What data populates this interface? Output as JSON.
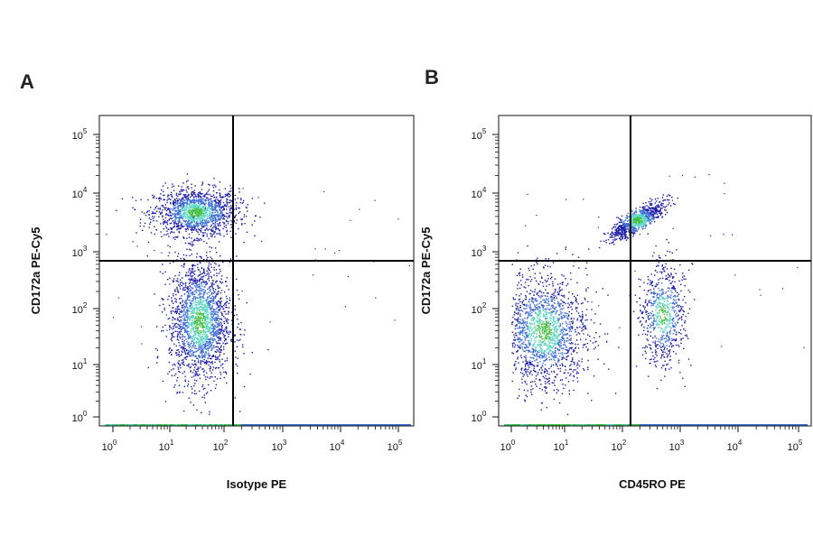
{
  "chart_data": [
    {
      "type": "scatter",
      "panel": "A",
      "xlabel": "Isotype PE",
      "ylabel": "CD172a PE-Cy5",
      "scale": "log",
      "xlim": [
        1,
        100000
      ],
      "ylim": [
        1,
        100000
      ],
      "x_ticks": [
        "10",
        "10",
        "10",
        "10",
        "10",
        "10"
      ],
      "x_tick_exps": [
        "0",
        "1",
        "2",
        "3",
        "4",
        "5"
      ],
      "y_ticks": [
        "10",
        "10",
        "10",
        "10",
        "10",
        "10"
      ],
      "y_tick_exps": [
        "0",
        "1",
        "2",
        "3",
        "4",
        "5"
      ],
      "gate": {
        "x": 150,
        "y": 650
      },
      "populations": [
        {
          "center": [
            30,
            4800
          ],
          "spread": [
            0.38,
            0.2
          ],
          "count": 1500,
          "density": "high"
        },
        {
          "center": [
            35,
            60
          ],
          "spread": [
            0.28,
            0.55
          ],
          "count": 2000,
          "density": "high"
        }
      ]
    },
    {
      "type": "scatter",
      "panel": "B",
      "xlabel": "CD45RO PE",
      "ylabel": "CD172a PE-Cy5",
      "scale": "log",
      "xlim": [
        1,
        100000
      ],
      "ylim": [
        1,
        100000
      ],
      "x_ticks": [
        "10",
        "10",
        "10",
        "10",
        "10",
        "10"
      ],
      "x_tick_exps": [
        "0",
        "1",
        "2",
        "3",
        "4",
        "5"
      ],
      "y_ticks": [
        "10",
        "10",
        "10",
        "10",
        "10",
        "10"
      ],
      "y_tick_exps": [
        "0",
        "1",
        "2",
        "3",
        "4",
        "5"
      ],
      "gate": {
        "x": 150,
        "y": 650
      },
      "populations": [
        {
          "center": [
            180,
            3500
          ],
          "spread": [
            0.22,
            0.15
          ],
          "count": 900,
          "density": "high",
          "diagonal": true
        },
        {
          "center": [
            4,
            40
          ],
          "spread": [
            0.4,
            0.5
          ],
          "count": 1700,
          "density": "high"
        },
        {
          "center": [
            500,
            80
          ],
          "spread": [
            0.2,
            0.45
          ],
          "count": 700,
          "density": "medium"
        }
      ]
    }
  ],
  "colors": {
    "axis": "#111111",
    "gate": "#000000",
    "density_low": "#1a1aa8",
    "density_mid": "#3d6fd6",
    "density_high": "#5fd6c8",
    "density_peak": "#3fbf3f"
  }
}
